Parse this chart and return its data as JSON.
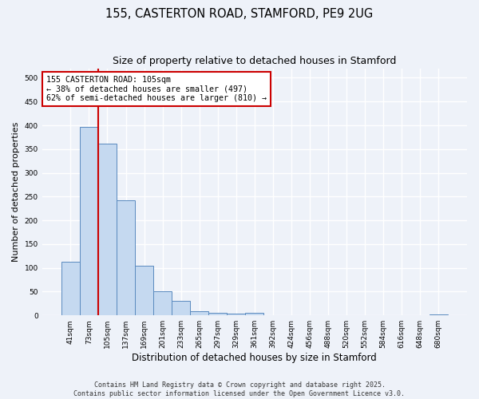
{
  "title": "155, CASTERTON ROAD, STAMFORD, PE9 2UG",
  "subtitle": "Size of property relative to detached houses in Stamford",
  "xlabel": "Distribution of detached houses by size in Stamford",
  "ylabel": "Number of detached properties",
  "categories": [
    "41sqm",
    "73sqm",
    "105sqm",
    "137sqm",
    "169sqm",
    "201sqm",
    "233sqm",
    "265sqm",
    "297sqm",
    "329sqm",
    "361sqm",
    "392sqm",
    "424sqm",
    "456sqm",
    "488sqm",
    "520sqm",
    "552sqm",
    "584sqm",
    "616sqm",
    "648sqm",
    "680sqm"
  ],
  "values": [
    113,
    397,
    362,
    243,
    105,
    50,
    30,
    9,
    6,
    4,
    6,
    1,
    0,
    0,
    0,
    1,
    0,
    0,
    0,
    0,
    2
  ],
  "bar_color": "#c5d9f0",
  "bar_edge_color": "#5a8abf",
  "highlight_line_index": 2,
  "highlight_line_color": "#cc0000",
  "annotation_text": "155 CASTERTON ROAD: 105sqm\n← 38% of detached houses are smaller (497)\n62% of semi-detached houses are larger (810) →",
  "annotation_box_color": "#ffffff",
  "annotation_box_edge": "#cc0000",
  "ylim": [
    0,
    520
  ],
  "yticks": [
    0,
    50,
    100,
    150,
    200,
    250,
    300,
    350,
    400,
    450,
    500
  ],
  "background_color": "#eef2f9",
  "grid_color": "#ffffff",
  "footer_line1": "Contains HM Land Registry data © Crown copyright and database right 2025.",
  "footer_line2": "Contains public sector information licensed under the Open Government Licence v3.0."
}
